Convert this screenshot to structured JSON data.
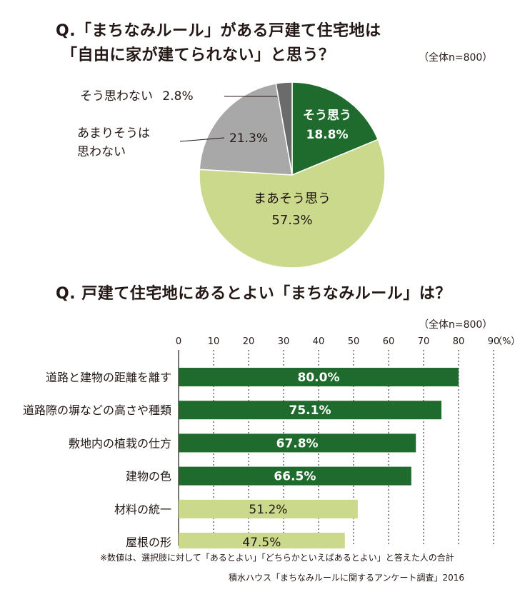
{
  "q1": {
    "title_line1": "Q.「まちなみルール」がある戸建て住宅地は",
    "title_line2": "「自由に家が建てられない」と思う？",
    "sample_note": "（全体n=800）"
  },
  "q2": {
    "title": "Q. 戸建て住宅地にあるとよい「まちなみルール」は？",
    "sample_note": "（全体n=800）"
  },
  "colors": {
    "dark_green": "#1e6b2d",
    "light_green": "#cad98b",
    "gray": "#a8a8a8",
    "dark_gray": "#6b6b6b"
  },
  "chart_data": [
    {
      "type": "pie",
      "title": "「まちなみルール」がある戸建て住宅地は「自由に家が建てられない」と思う？",
      "slices": [
        {
          "label": "そう思う",
          "value": 18.8,
          "value_label": "18.8%",
          "color": "#1e6b2d"
        },
        {
          "label": "まあそう思う",
          "value": 57.3,
          "value_label": "57.3%",
          "color": "#cad98b"
        },
        {
          "label": "あまりそうは思わない",
          "value": 21.3,
          "value_label": "21.3%",
          "color": "#a8a8a8"
        },
        {
          "label": "そう思わない",
          "value": 2.8,
          "value_label": "2.8%",
          "color": "#6b6b6b"
        }
      ]
    },
    {
      "type": "bar",
      "orientation": "horizontal",
      "title": "戸建て住宅地にあるとよい「まちなみルール」は？",
      "categories": [
        "道路と建物の距離を離す",
        "道路際の塀などの高さや種類",
        "敷地内の植栽の仕方",
        "建物の色",
        "材料の統一",
        "屋根の形"
      ],
      "values": [
        80.0,
        75.1,
        67.8,
        66.5,
        51.2,
        47.5
      ],
      "value_labels": [
        "80.0%",
        "75.1%",
        "67.8%",
        "66.5%",
        "51.2%",
        "47.5%"
      ],
      "bar_colors": [
        "#1e6b2d",
        "#1e6b2d",
        "#1e6b2d",
        "#1e6b2d",
        "#cad98b",
        "#cad98b"
      ],
      "xlim": [
        0,
        90
      ],
      "xticks": [
        0,
        10,
        20,
        30,
        40,
        50,
        60,
        70,
        80,
        90
      ],
      "tick_labels": [
        "0",
        "10",
        "20",
        "30",
        "40",
        "50",
        "60",
        "70",
        "80",
        "90"
      ],
      "unit": "（%）",
      "grid": "dotted-vertical"
    }
  ],
  "footnote": "※数値は、選択肢に対して「あるとよい」「どちらかといえばあるとよい」と答えた人の合計",
  "source": "積水ハウス「まちなみルールに関するアンケート調査」2016"
}
